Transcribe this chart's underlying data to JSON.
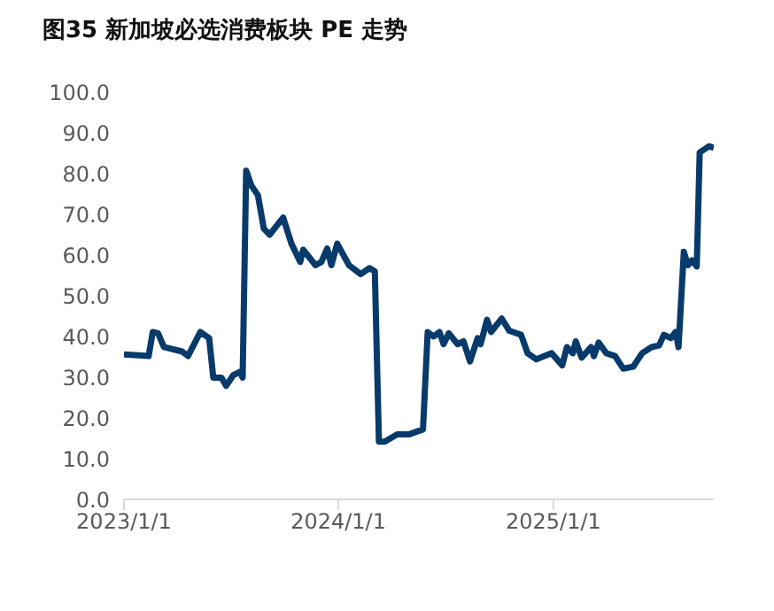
{
  "chart_data": {
    "type": "line",
    "title": "图35  新加坡必选消费板块 PE 走势",
    "x": [
      "2023-01-01",
      "2023-02-12",
      "2023-02-19",
      "2023-02-28",
      "2023-03-10",
      "2023-04-10",
      "2023-04-20",
      "2023-05-11",
      "2023-05-26",
      "2023-06-02",
      "2023-06-16",
      "2023-06-24",
      "2023-07-06",
      "2023-07-17",
      "2023-07-22",
      "2023-07-28",
      "2023-08-06",
      "2023-08-17",
      "2023-08-27",
      "2023-09-06",
      "2023-09-29",
      "2023-10-13",
      "2023-10-28",
      "2023-11-02",
      "2023-11-23",
      "2023-12-03",
      "2023-12-13",
      "2023-12-20",
      "2023-12-30",
      "2024-01-19",
      "2024-02-08",
      "2024-02-23",
      "2024-03-03",
      "2024-03-10",
      "2024-03-20",
      "2024-04-10",
      "2024-05-01",
      "2024-05-24",
      "2024-06-01",
      "2024-06-11",
      "2024-06-21",
      "2024-06-28",
      "2024-07-07",
      "2024-07-22",
      "2024-08-01",
      "2024-08-12",
      "2024-08-25",
      "2024-08-30",
      "2024-09-10",
      "2024-09-17",
      "2024-10-05",
      "2024-10-18",
      "2024-11-07",
      "2024-11-18",
      "2024-12-03",
      "2024-12-29",
      "2025-01-16",
      "2025-01-24",
      "2025-02-03",
      "2025-02-08",
      "2025-02-18",
      "2025-03-06",
      "2025-03-11",
      "2025-03-19",
      "2025-04-01",
      "2025-04-16",
      "2025-04-30",
      "2025-05-17",
      "2025-06-01",
      "2025-06-17",
      "2025-06-30",
      "2025-07-08",
      "2025-07-20",
      "2025-07-28",
      "2025-08-02",
      "2025-08-11",
      "2025-08-18",
      "2025-08-25",
      "2025-09-02",
      "2025-09-07",
      "2025-09-23",
      "2025-10-01"
    ],
    "series": [
      {
        "color": "#083a6b",
        "values": [
          35.6,
          35.2,
          41.1,
          40.8,
          37.4,
          36.3,
          35.2,
          41.1,
          39.6,
          29.9,
          29.9,
          27.9,
          30.5,
          31.3,
          29.9,
          80.7,
          77,
          74.7,
          66.5,
          65,
          69.2,
          62.8,
          58.3,
          61.3,
          57.5,
          58.3,
          61.6,
          57.5,
          62.8,
          57.5,
          55.3,
          56.8,
          56,
          14.2,
          14.2,
          16,
          16,
          17.2,
          41.1,
          40,
          41.1,
          38.1,
          40.8,
          38.1,
          38.8,
          33.9,
          39.6,
          38.1,
          44.1,
          41.1,
          44.4,
          41.4,
          40.4,
          35.9,
          34.4,
          35.9,
          32.9,
          37.4,
          35.9,
          38.8,
          34.8,
          37.4,
          35.2,
          38.5,
          35.9,
          35.2,
          32.1,
          32.6,
          35.9,
          37.4,
          37.8,
          40.4,
          39.6,
          41.1,
          37.4,
          60.8,
          57.5,
          58.7,
          57.2,
          85.2,
          86.7,
          86.3
        ]
      }
    ],
    "xlim": [
      "2023-01-01",
      "2025-10-01"
    ],
    "xticks": [
      {
        "value": "2023-01-01",
        "label": "2023/1/1"
      },
      {
        "value": "2024-01-01",
        "label": "2024/1/1"
      },
      {
        "value": "2025-01-01",
        "label": "2025/1/1"
      }
    ],
    "ylim": [
      0,
      100
    ],
    "yticks": [
      {
        "value": 0,
        "label": "0.0"
      },
      {
        "value": 10,
        "label": "10.0"
      },
      {
        "value": 20,
        "label": "20.0"
      },
      {
        "value": 30,
        "label": "30.0"
      },
      {
        "value": 40,
        "label": "40.0"
      },
      {
        "value": 50,
        "label": "50.0"
      },
      {
        "value": 60,
        "label": "60.0"
      },
      {
        "value": 70,
        "label": "70.0"
      },
      {
        "value": 80,
        "label": "80.0"
      },
      {
        "value": 90,
        "label": "90.0"
      },
      {
        "value": 100,
        "label": "100.0"
      }
    ],
    "grid": false,
    "legend": false,
    "marker": "none",
    "line_style": "solid"
  }
}
